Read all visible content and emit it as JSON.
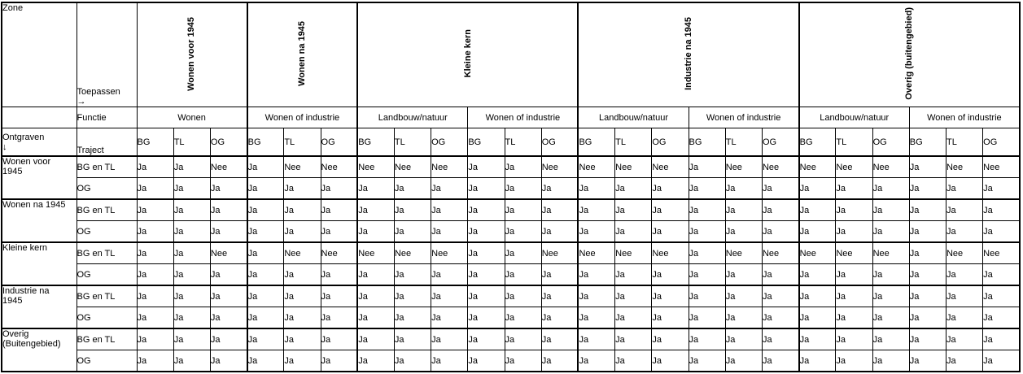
{
  "palette": {
    "green": "#32C832",
    "orange_red": "#FF4509",
    "red": "#FB0B02",
    "border": "#000000",
    "background": "#FFFFFF",
    "text": "#000000"
  },
  "header": {
    "zone_label": "Zone",
    "toepassen_label": "Toepassen→",
    "functie_label": "Functie",
    "ontgraven_label": "Ontgraven ↓",
    "traject_label": "Traject",
    "traject_cols": [
      "BG",
      "TL",
      "OG"
    ],
    "zones": [
      {
        "label": "Wonen voor 1945",
        "functions": [
          {
            "label": "Wonen",
            "cols": 3
          }
        ]
      },
      {
        "label": "Wonen na 1945",
        "functions": [
          {
            "label": "Wonen of industrie",
            "cols": 3
          }
        ]
      },
      {
        "label": "Kleine kern",
        "functions": [
          {
            "label": "Landbouw/natuur",
            "cols": 3
          },
          {
            "label": "Wonen of industrie",
            "cols": 3
          }
        ]
      },
      {
        "label": "Industrie na 1945",
        "functions": [
          {
            "label": "Landbouw/natuur",
            "cols": 3
          },
          {
            "label": "Wonen of industrie",
            "cols": 3
          }
        ]
      },
      {
        "label": "Overig (buitengebied)",
        "functions": [
          {
            "label": "Landbouw/natuur",
            "cols": 3
          },
          {
            "label": "Wonen of industrie",
            "cols": 3
          }
        ]
      }
    ]
  },
  "body": {
    "groups": [
      {
        "zone": "Wonen voor 1945",
        "rows": [
          {
            "traject": "BG en TL",
            "values": [
              "Ja",
              "Ja",
              "Nee",
              "Ja",
              "Nee",
              "Nee",
              "Nee",
              "Nee",
              "Nee",
              "Ja",
              "Ja",
              "Nee",
              "Nee",
              "Nee",
              "Nee",
              "Ja",
              "Nee",
              "Nee",
              "Nee",
              "Nee",
              "Nee",
              "Ja",
              "Nee",
              "Nee"
            ],
            "colors": [
              "g",
              "g",
              "o",
              "g",
              "o",
              "o",
              "r",
              "r",
              "r",
              "g",
              "g",
              "o",
              "r",
              "o",
              "o",
              "g",
              "o",
              "o",
              "r",
              "o",
              "o",
              "g",
              "o",
              "o"
            ]
          },
          {
            "traject": "OG",
            "values": [
              "Ja",
              "Ja",
              "Ja",
              "Ja",
              "Ja",
              "Ja",
              "Ja",
              "Ja",
              "Ja",
              "Ja",
              "Ja",
              "Ja",
              "Ja",
              "Ja",
              "Ja",
              "Ja",
              "Ja",
              "Ja",
              "Ja",
              "Ja",
              "Ja",
              "Ja",
              "Ja",
              "Ja"
            ],
            "colors": [
              "g",
              "g",
              "g",
              "g",
              "g",
              "g",
              "g",
              "g",
              "g",
              "g",
              "g",
              "g",
              "g",
              "g",
              "g",
              "g",
              "g",
              "g",
              "g",
              "g",
              "g",
              "g",
              "g",
              "g"
            ]
          }
        ]
      },
      {
        "zone": "Wonen na 1945",
        "rows": [
          {
            "traject": "BG en TL",
            "values": [
              "Ja",
              "Ja",
              "Ja",
              "Ja",
              "Ja",
              "Ja",
              "Ja",
              "Ja",
              "Ja",
              "Ja",
              "Ja",
              "Ja",
              "Ja",
              "Ja",
              "Ja",
              "Ja",
              "Ja",
              "Ja",
              "Ja",
              "Ja",
              "Ja",
              "Ja",
              "Ja",
              "Ja"
            ],
            "colors": [
              "g",
              "g",
              "g",
              "g",
              "g",
              "g",
              "g",
              "g",
              "g",
              "g",
              "g",
              "g",
              "g",
              "g",
              "g",
              "g",
              "g",
              "g",
              "g",
              "g",
              "g",
              "g",
              "g",
              "g"
            ]
          },
          {
            "traject": "OG",
            "values": [
              "Ja",
              "Ja",
              "Ja",
              "Ja",
              "Ja",
              "Ja",
              "Ja",
              "Ja",
              "Ja",
              "Ja",
              "Ja",
              "Ja",
              "Ja",
              "Ja",
              "Ja",
              "Ja",
              "Ja",
              "Ja",
              "Ja",
              "Ja",
              "Ja",
              "Ja",
              "Ja",
              "Ja"
            ],
            "colors": [
              "g",
              "g",
              "g",
              "g",
              "g",
              "g",
              "g",
              "g",
              "g",
              "g",
              "g",
              "g",
              "g",
              "g",
              "g",
              "g",
              "g",
              "g",
              "g",
              "g",
              "g",
              "g",
              "g",
              "g"
            ]
          }
        ]
      },
      {
        "zone": "Kleine kern",
        "rows": [
          {
            "traject": "BG en TL",
            "values": [
              "Ja",
              "Ja",
              "Nee",
              "Ja",
              "Nee",
              "Nee",
              "Nee",
              "Nee",
              "Nee",
              "Ja",
              "Ja",
              "Nee",
              "Nee",
              "Nee",
              "Nee",
              "Ja",
              "Nee",
              "Nee",
              "Nee",
              "Nee",
              "Nee",
              "Ja",
              "Nee",
              "Nee"
            ],
            "colors": [
              "g",
              "g",
              "o",
              "g",
              "o",
              "o",
              "r",
              "r",
              "r",
              "g",
              "g",
              "o",
              "r",
              "o",
              "o",
              "g",
              "o",
              "o",
              "r",
              "o",
              "o",
              "g",
              "o",
              "o"
            ]
          },
          {
            "traject": "OG",
            "values": [
              "Ja",
              "Ja",
              "Ja",
              "Ja",
              "Ja",
              "Ja",
              "Ja",
              "Ja",
              "Ja",
              "Ja",
              "Ja",
              "Ja",
              "Ja",
              "Ja",
              "Ja",
              "Ja",
              "Ja",
              "Ja",
              "Ja",
              "Ja",
              "Ja",
              "Ja",
              "Ja",
              "Ja"
            ],
            "colors": [
              "g",
              "g",
              "g",
              "g",
              "g",
              "g",
              "g",
              "g",
              "g",
              "g",
              "g",
              "g",
              "g",
              "g",
              "g",
              "g",
              "g",
              "g",
              "g",
              "g",
              "g",
              "g",
              "g",
              "g"
            ]
          }
        ]
      },
      {
        "zone": "Industrie na 1945",
        "rows": [
          {
            "traject": "BG en TL",
            "values": [
              "Ja",
              "Ja",
              "Ja",
              "Ja",
              "Ja",
              "Ja",
              "Ja",
              "Ja",
              "Ja",
              "Ja",
              "Ja",
              "Ja",
              "Ja",
              "Ja",
              "Ja",
              "Ja",
              "Ja",
              "Ja",
              "Ja",
              "Ja",
              "Ja",
              "Ja",
              "Ja",
              "Ja"
            ],
            "colors": [
              "g",
              "g",
              "g",
              "g",
              "g",
              "g",
              "g",
              "g",
              "g",
              "g",
              "g",
              "g",
              "g",
              "g",
              "g",
              "g",
              "g",
              "g",
              "g",
              "g",
              "g",
              "g",
              "g",
              "g"
            ]
          },
          {
            "traject": "OG",
            "values": [
              "Ja",
              "Ja",
              "Ja",
              "Ja",
              "Ja",
              "Ja",
              "Ja",
              "Ja",
              "Ja",
              "Ja",
              "Ja",
              "Ja",
              "Ja",
              "Ja",
              "Ja",
              "Ja",
              "Ja",
              "Ja",
              "Ja",
              "Ja",
              "Ja",
              "Ja",
              "Ja",
              "Ja"
            ],
            "colors": [
              "g",
              "g",
              "g",
              "g",
              "g",
              "g",
              "g",
              "g",
              "g",
              "g",
              "g",
              "g",
              "g",
              "g",
              "g",
              "g",
              "g",
              "g",
              "g",
              "g",
              "g",
              "g",
              "g",
              "g"
            ]
          }
        ]
      },
      {
        "zone": "Overig (Buitengebied)",
        "rows": [
          {
            "traject": "BG en TL",
            "values": [
              "Ja",
              "Ja",
              "Ja",
              "Ja",
              "Ja",
              "Ja",
              "Ja",
              "Ja",
              "Ja",
              "Ja",
              "Ja",
              "Ja",
              "Ja",
              "Ja",
              "Ja",
              "Ja",
              "Ja",
              "Ja",
              "Ja",
              "Ja",
              "Ja",
              "Ja",
              "Ja",
              "Ja"
            ],
            "colors": [
              "g",
              "g",
              "g",
              "g",
              "g",
              "g",
              "g",
              "g",
              "g",
              "g",
              "g",
              "g",
              "g",
              "g",
              "g",
              "g",
              "g",
              "g",
              "g",
              "g",
              "g",
              "g",
              "g",
              "g"
            ]
          },
          {
            "traject": "OG",
            "values": [
              "Ja",
              "Ja",
              "Ja",
              "Ja",
              "Ja",
              "Ja",
              "Ja",
              "Ja",
              "Ja",
              "Ja",
              "Ja",
              "Ja",
              "Ja",
              "Ja",
              "Ja",
              "Ja",
              "Ja",
              "Ja",
              "Ja",
              "Ja",
              "Ja",
              "Ja",
              "Ja",
              "Ja"
            ],
            "colors": [
              "g",
              "g",
              "g",
              "g",
              "g",
              "g",
              "g",
              "g",
              "g",
              "g",
              "g",
              "g",
              "g",
              "g",
              "g",
              "g",
              "g",
              "g",
              "g",
              "g",
              "g",
              "g",
              "g",
              "g"
            ]
          }
        ]
      }
    ]
  }
}
